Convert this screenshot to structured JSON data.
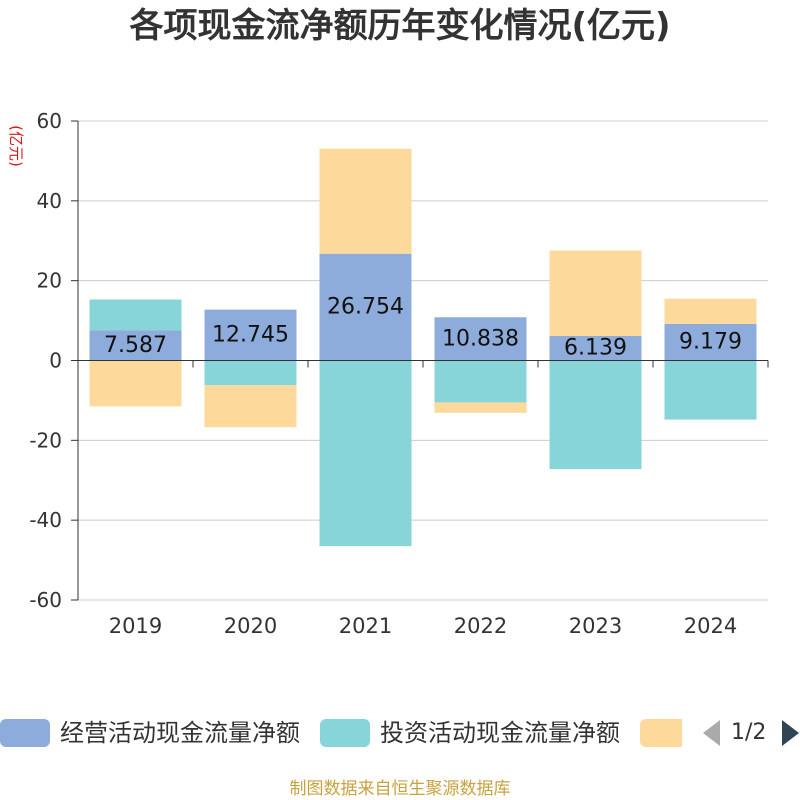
{
  "chart_data": {
    "type": "bar",
    "stacked": true,
    "title": "各项现金流净额历年变化情况(亿元)",
    "ylabel": "(亿元)",
    "xlabel": "",
    "categories": [
      "2019",
      "2020",
      "2021",
      "2022",
      "2023",
      "2024"
    ],
    "ylim": [
      -60,
      60
    ],
    "yticks": [
      60,
      40,
      20,
      0,
      -20,
      -40,
      -60
    ],
    "grid": true,
    "legend": "bottom",
    "series": [
      {
        "name": "经营活动现金流量净额",
        "color": "#8eacdb",
        "show_labels": true,
        "values": [
          7.587,
          12.745,
          26.754,
          10.838,
          6.139,
          9.179
        ]
      },
      {
        "name": "投资活动现金流量净额",
        "color": "#87d5d8",
        "values": [
          7.7,
          -6.2,
          -46.5,
          -10.5,
          -27.2,
          -14.8
        ]
      },
      {
        "color": "#fdd99b",
        "values": [
          -11.5,
          -10.5,
          26.3,
          -2.6,
          21.4,
          6.3
        ]
      }
    ]
  },
  "legend": {
    "page": "1/2",
    "prev_icon": "triangle-left-icon",
    "next_icon": "triangle-right-icon",
    "prev_color": "#aaaaaa",
    "next_color": "#2f4554"
  },
  "footer": "制图数据来自恒生聚源数据库"
}
